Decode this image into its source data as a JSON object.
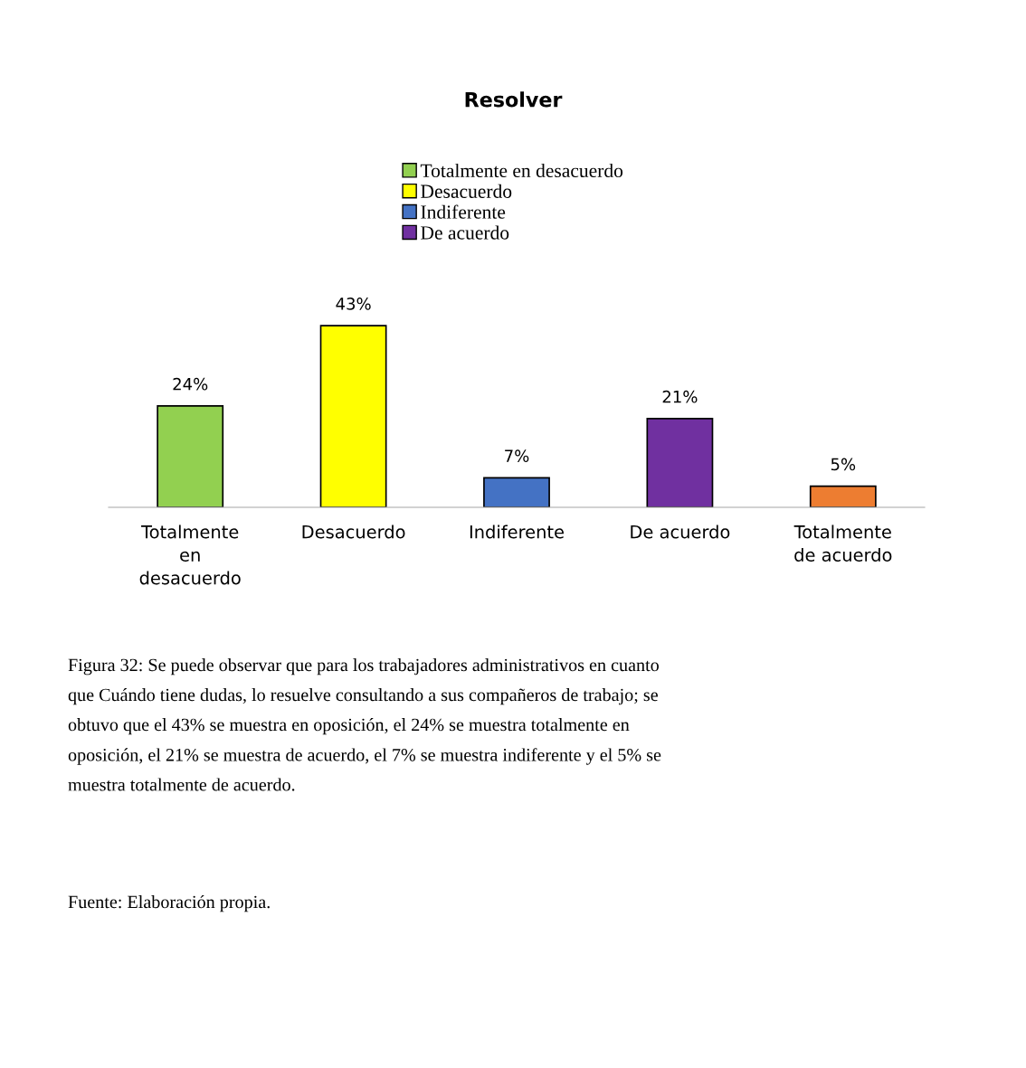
{
  "chart_data": {
    "type": "bar",
    "title": "Resolver",
    "categories": [
      "Totalmente en desacuerdo",
      "Desacuerdo",
      "Indiferente",
      "De acuerdo",
      "Totalmente de acuerdo"
    ],
    "series": [
      {
        "name": "Totalmente en desacuerdo",
        "color": "#92d050",
        "values": [
          24,
          null,
          null,
          null,
          null
        ],
        "value_labels": [
          "24%",
          null,
          null,
          null,
          null
        ]
      },
      {
        "name": "Desacuerdo",
        "color": "#ffff00",
        "values": [
          null,
          43,
          null,
          null,
          null
        ],
        "value_labels": [
          null,
          "43%",
          null,
          null,
          null
        ]
      },
      {
        "name": "Indiferente",
        "color": "#4472c4",
        "values": [
          null,
          null,
          7,
          null,
          null
        ],
        "value_labels": [
          null,
          null,
          "7%",
          null,
          null
        ]
      },
      {
        "name": "De acuerdo",
        "color": "#7030a0",
        "values": [
          null,
          null,
          null,
          21,
          null
        ],
        "value_labels": [
          null,
          null,
          null,
          "21%",
          null
        ]
      },
      {
        "color": "#ed7d31",
        "values": [
          null,
          null,
          null,
          null,
          5
        ],
        "value_labels": [
          null,
          null,
          null,
          null,
          "5%"
        ]
      }
    ],
    "legend": "top",
    "grid": false,
    "annotations": [
      "Figura 32: Se puede observar que para los trabajadores administrativos en cuanto que Cuándo tiene dudas, lo resuelve consultando a sus compañeros de trabajo; se obtuvo que el 43% se muestra en oposición, el 24% se muestra totalmente en oposición, el 21% se muestra de acuerdo, el 7% se muestra indiferente y el 5% se muestra totalmente de acuerdo.",
      "Fuente: Elaboración propia."
    ]
  }
}
